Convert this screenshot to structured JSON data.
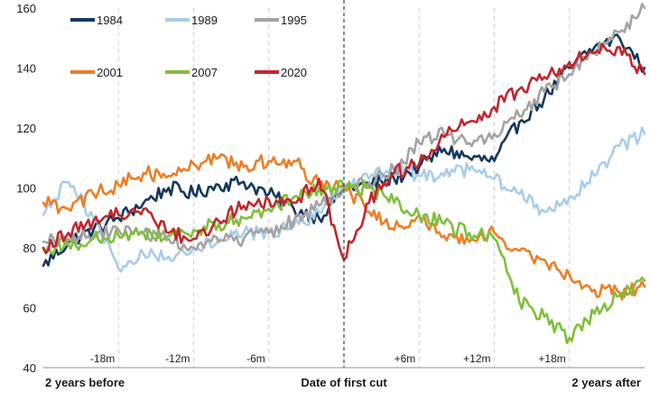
{
  "chart_data": {
    "type": "line",
    "title": "",
    "xlabel": "",
    "ylabel": "",
    "ylim": [
      40,
      160
    ],
    "xlim": [
      -24,
      24
    ],
    "x_unit": "months relative to date of first cut",
    "y_ticks": [
      "40",
      "60",
      "80",
      "100",
      "120",
      "140",
      "160"
    ],
    "month_markers": [
      {
        "x": -18,
        "label": "-18m"
      },
      {
        "x": -12,
        "label": "-12m"
      },
      {
        "x": -6,
        "label": "-6m"
      },
      {
        "x": 6,
        "label": "+6m"
      },
      {
        "x": 12,
        "label": "+12m"
      },
      {
        "x": 18,
        "label": "+18m"
      }
    ],
    "x_edge_labels": {
      "left": "2 years before",
      "center": "Date of first cut",
      "right": "2 years after"
    },
    "vertical_marker": {
      "x": 0,
      "style": "dashed"
    },
    "grid": "dashed vertical lines at month markers",
    "legend_placement": "top-left",
    "series": [
      {
        "name": "1984",
        "color": "#14375e",
        "x": [
          -24,
          -22,
          -20,
          -18,
          -16,
          -14,
          -12,
          -10,
          -8,
          -6,
          -4,
          -2,
          0,
          2,
          4,
          6,
          8,
          10,
          12,
          14,
          16,
          18,
          20,
          22,
          24
        ],
        "y": [
          74,
          82,
          86,
          90,
          95,
          100,
          98,
          101,
          102,
          98,
          93,
          90,
          100,
          101,
          103,
          107,
          113,
          110,
          109,
          122,
          130,
          140,
          147,
          150,
          140
        ]
      },
      {
        "name": "1989",
        "color": "#a8cdea",
        "x": [
          -24,
          -22,
          -20,
          -18,
          -16,
          -14,
          -12,
          -10,
          -8,
          -6,
          -4,
          -2,
          0,
          2,
          4,
          6,
          8,
          10,
          12,
          14,
          16,
          18,
          20,
          22,
          24
        ],
        "y": [
          91,
          102,
          90,
          73,
          78,
          77,
          80,
          83,
          85,
          85,
          87,
          92,
          100,
          103,
          107,
          104,
          104,
          106,
          103,
          98,
          92,
          97,
          104,
          114,
          118
        ]
      },
      {
        "name": "1995",
        "color": "#a3a3a3",
        "x": [
          -24,
          -22,
          -20,
          -18,
          -16,
          -14,
          -12,
          -10,
          -8,
          -6,
          -4,
          -2,
          0,
          2,
          4,
          6,
          8,
          10,
          12,
          14,
          16,
          18,
          20,
          22,
          24
        ],
        "y": [
          82,
          83,
          84,
          86,
          85,
          83,
          80,
          82,
          83,
          85,
          89,
          94,
          100,
          102,
          106,
          115,
          118,
          115,
          118,
          124,
          132,
          138,
          145,
          152,
          160
        ]
      },
      {
        "name": "2001",
        "color": "#ee7d25",
        "x": [
          -24,
          -22,
          -20,
          -18,
          -16,
          -14,
          -12,
          -10,
          -8,
          -6,
          -4,
          -2,
          0,
          2,
          4,
          6,
          8,
          10,
          12,
          14,
          16,
          18,
          20,
          22,
          24
        ],
        "y": [
          95,
          93,
          98,
          101,
          105,
          104,
          108,
          110,
          107,
          109,
          109,
          101,
          100,
          92,
          86,
          91,
          84,
          82,
          85,
          79,
          76,
          71,
          66,
          65,
          67
        ]
      },
      {
        "name": "2007",
        "color": "#7fbf3a",
        "x": [
          -24,
          -22,
          -20,
          -18,
          -16,
          -14,
          -12,
          -10,
          -8,
          -6,
          -4,
          -2,
          0,
          2,
          4,
          6,
          8,
          10,
          12,
          14,
          16,
          18,
          20,
          22,
          24
        ],
        "y": [
          80,
          81,
          83,
          84,
          85,
          84,
          86,
          88,
          90,
          93,
          97,
          100,
          100,
          100,
          95,
          91,
          88,
          85,
          83,
          62,
          57,
          50,
          58,
          64,
          69
        ]
      },
      {
        "name": "2020",
        "color": "#c0272d",
        "x": [
          -24,
          -22,
          -20,
          -18,
          -16,
          -14,
          -12,
          -10,
          -8,
          -6,
          -4,
          -2,
          0,
          2,
          4,
          6,
          8,
          10,
          12,
          14,
          16,
          18,
          20,
          22,
          24
        ],
        "y": [
          80,
          85,
          89,
          91,
          93,
          85,
          83,
          89,
          94,
          96,
          95,
          103,
          76,
          95,
          105,
          108,
          117,
          122,
          127,
          133,
          137,
          142,
          145,
          147,
          138
        ]
      }
    ]
  }
}
